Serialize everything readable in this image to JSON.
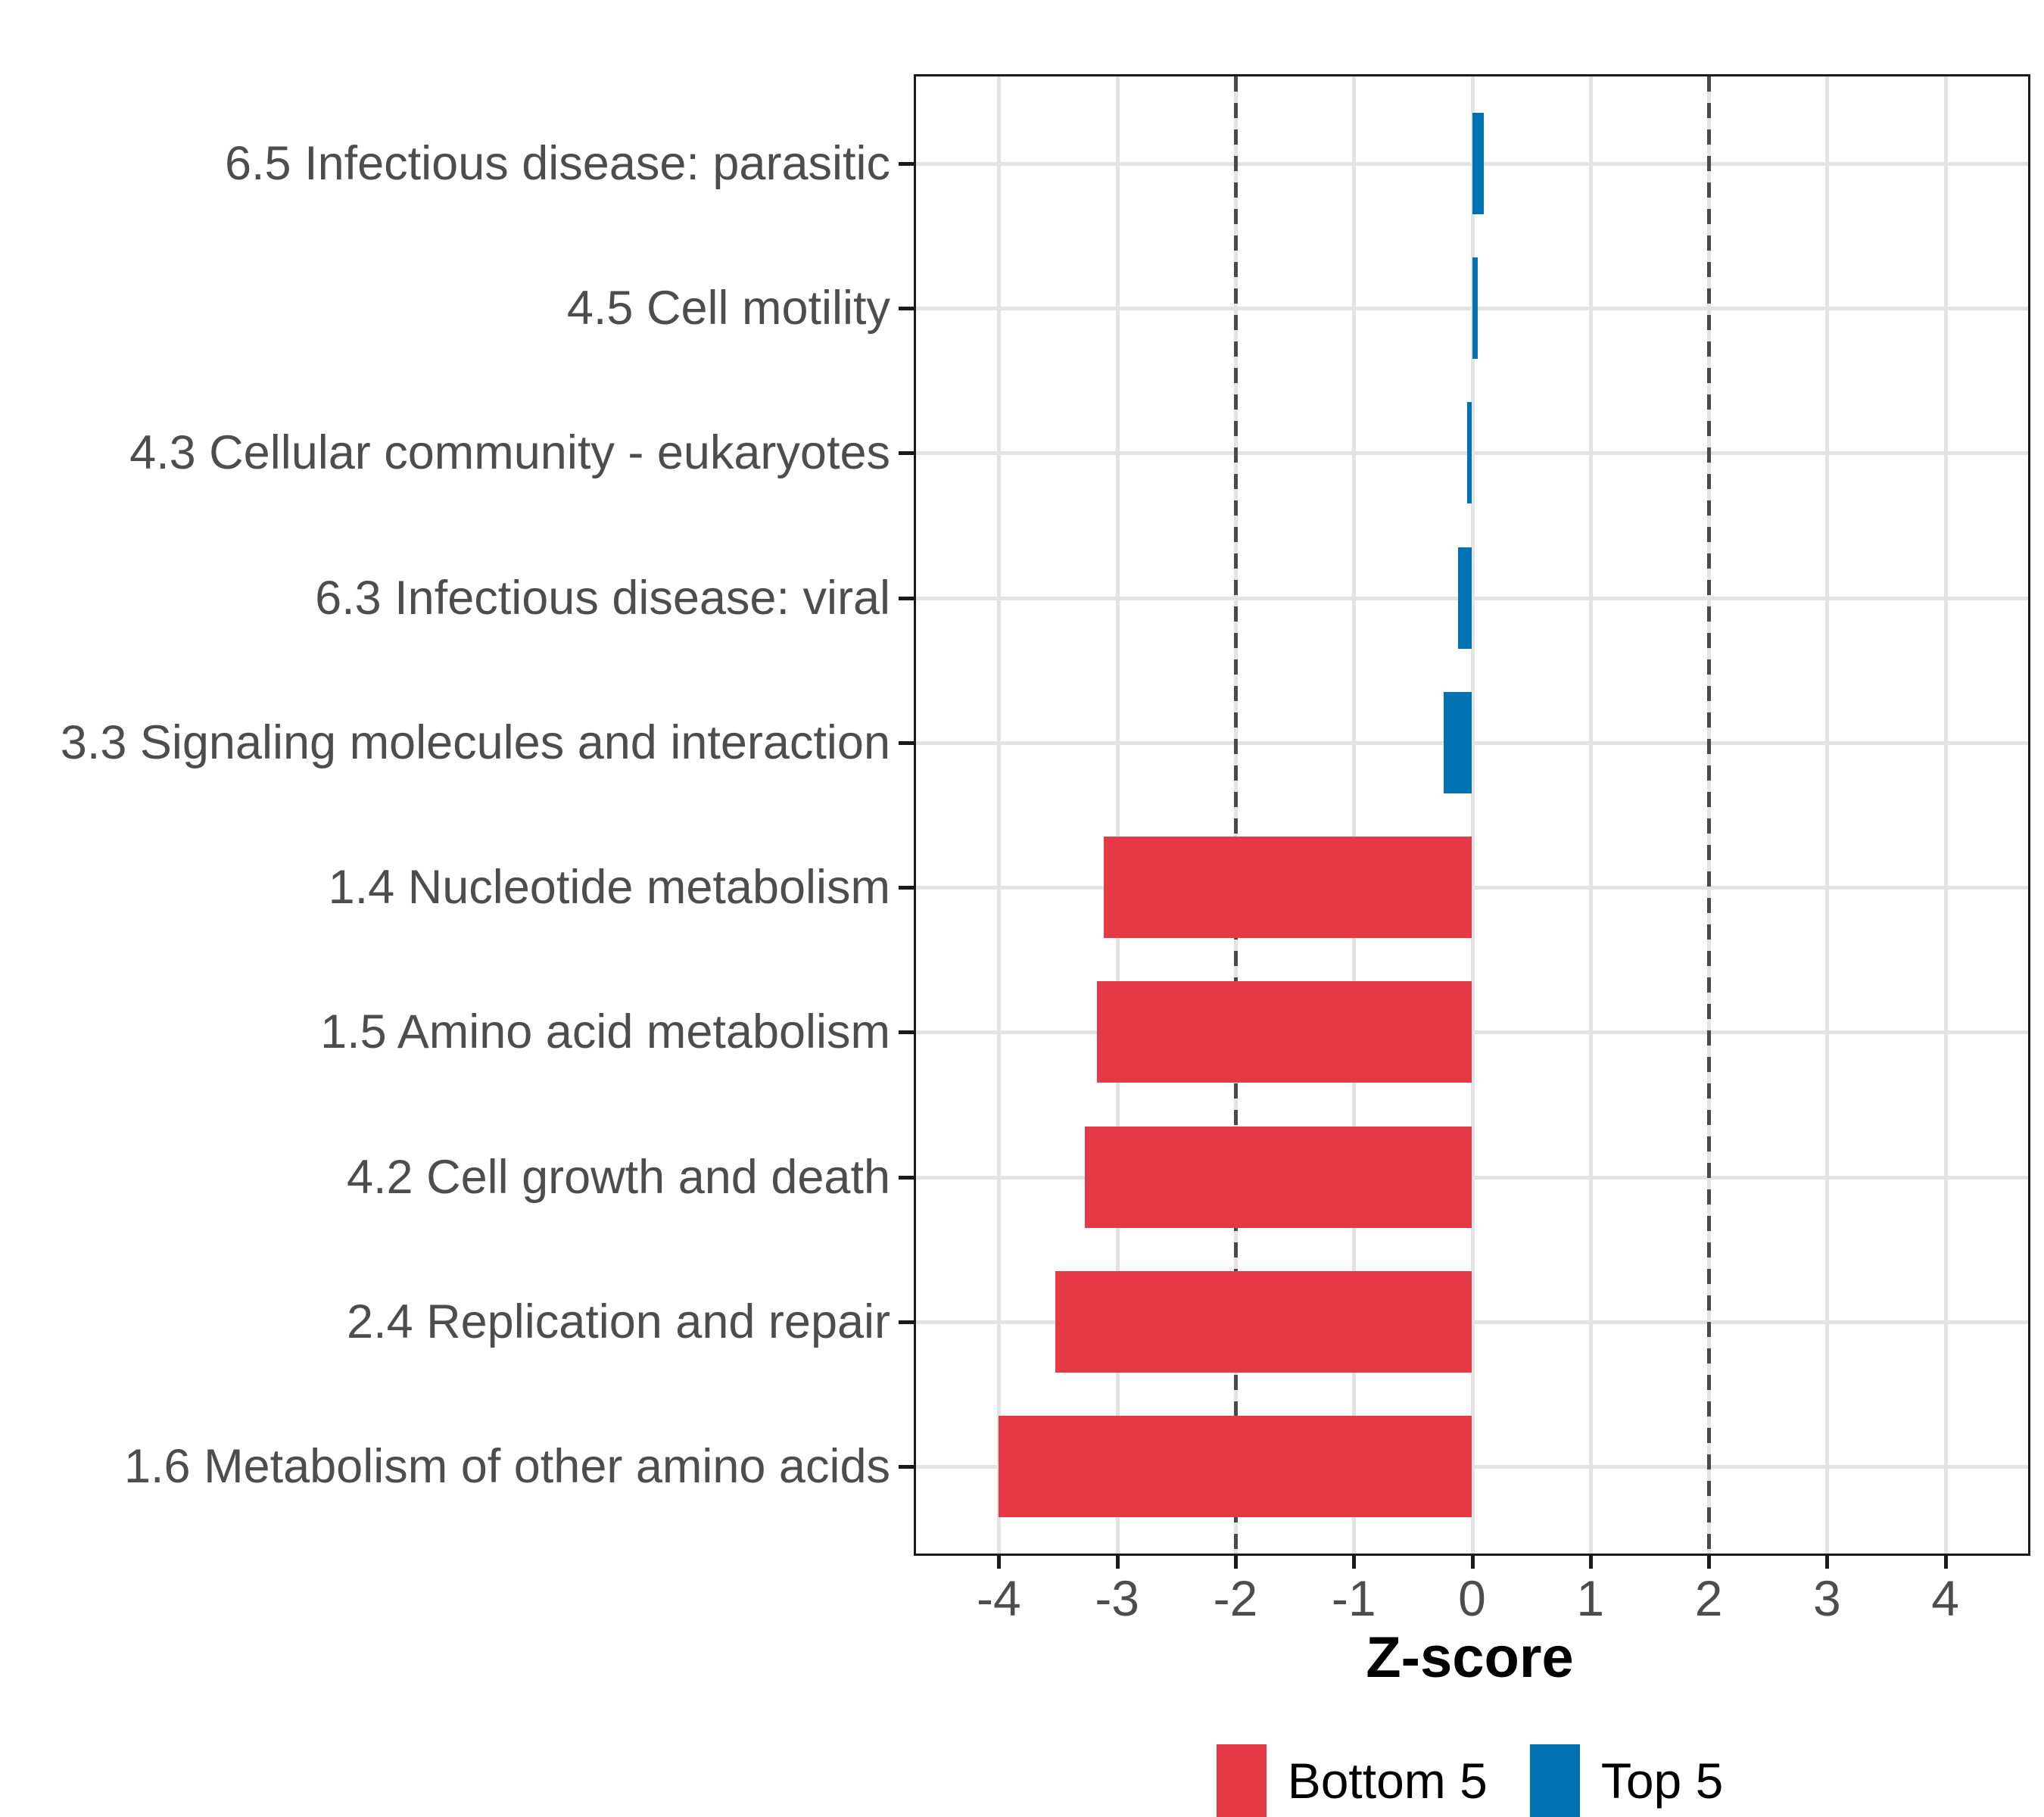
{
  "figure": {
    "background": "#FFFFFF"
  },
  "chart_data": {
    "type": "bar",
    "orientation": "horizontal",
    "title": "",
    "xlabel": "Z-score",
    "ylabel": "",
    "xlim": [
      -4.7,
      4.7
    ],
    "x_ticks": [
      -4,
      -3,
      -2,
      -1,
      0,
      1,
      2,
      3,
      4
    ],
    "x_tick_labels": [
      "-4",
      "-3",
      "-2",
      "-1",
      "0",
      "1",
      "2",
      "3",
      "4"
    ],
    "reference_lines": [
      -2,
      2
    ],
    "grid": true,
    "legend_position": "bottom",
    "categories": [
      "6.5 Infectious disease: parasitic",
      "4.5 Cell motility",
      "4.3 Cellular community - eukaryotes",
      "6.3 Infectious disease: viral",
      "3.3 Signaling molecules and interaction",
      "1.4 Nucleotide metabolism",
      "1.5 Amino acid metabolism",
      "4.2 Cell growth and death",
      "2.4 Replication and repair",
      "1.6 Metabolism of other amino acids"
    ],
    "values": [
      0.1,
      0.05,
      -0.04,
      -0.12,
      -0.24,
      -3.11,
      -3.17,
      -3.27,
      -3.52,
      -4.0
    ],
    "bars": [
      {
        "label": "6.5 Infectious disease: parasitic",
        "value": 0.1,
        "group": "Top 5"
      },
      {
        "label": "4.5 Cell motility",
        "value": 0.05,
        "group": "Top 5"
      },
      {
        "label": "4.3 Cellular community - eukaryotes",
        "value": -0.04,
        "group": "Top 5"
      },
      {
        "label": "6.3 Infectious disease: viral",
        "value": -0.12,
        "group": "Top 5"
      },
      {
        "label": "3.3 Signaling molecules and interaction",
        "value": -0.24,
        "group": "Top 5"
      },
      {
        "label": "1.4 Nucleotide metabolism",
        "value": -3.11,
        "group": "Bottom 5"
      },
      {
        "label": "1.5 Amino acid metabolism",
        "value": -3.17,
        "group": "Bottom 5"
      },
      {
        "label": "4.2 Cell growth and death",
        "value": -3.27,
        "group": "Bottom 5"
      },
      {
        "label": "2.4 Replication and repair",
        "value": -3.52,
        "group": "Bottom 5"
      },
      {
        "label": "1.6 Metabolism of other amino acids",
        "value": -4.0,
        "group": "Bottom 5"
      }
    ],
    "groups": [
      {
        "name": "Bottom 5",
        "color": "#E63946"
      },
      {
        "name": "Top 5",
        "color": "#0074B2"
      }
    ]
  },
  "legend": {
    "items": [
      {
        "label": "Bottom 5",
        "color": "#E63946"
      },
      {
        "label": "Top 5",
        "color": "#0074B2"
      }
    ]
  },
  "colors": {
    "bottom5": "#E63946",
    "top5": "#0074B2",
    "gridline": "#E3E3E3",
    "reference_line": "#4A4A4A",
    "axis_text": "#4D4D4D",
    "panel_border": "#1A1A1A"
  }
}
